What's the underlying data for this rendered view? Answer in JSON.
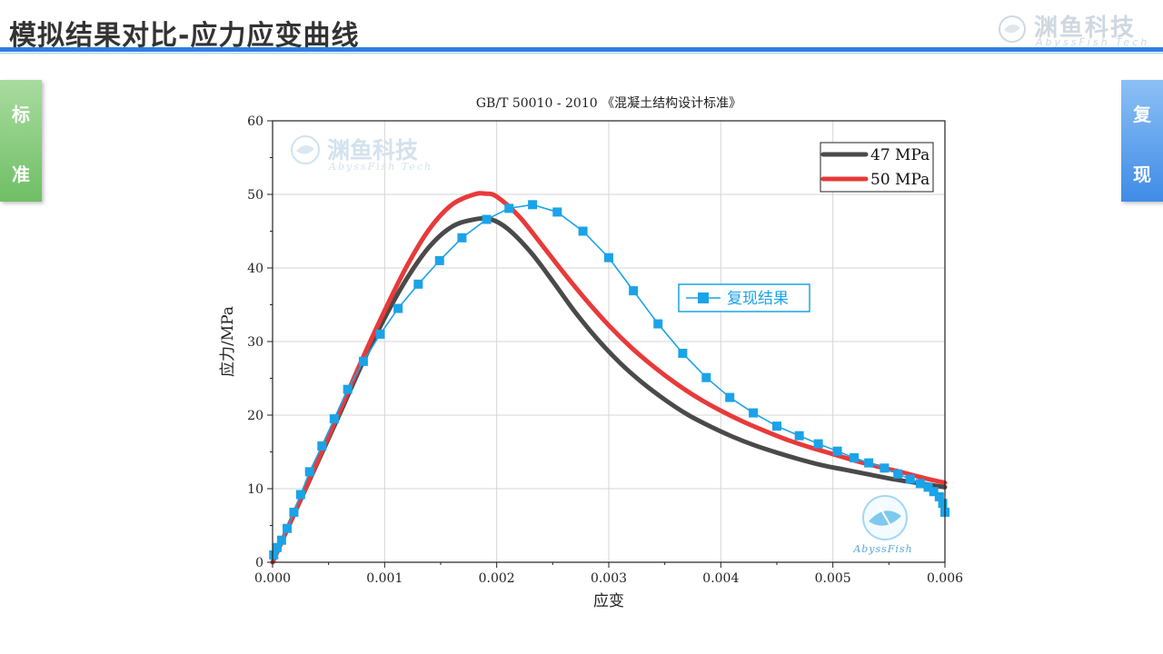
{
  "slide": {
    "title": "模拟结果对比-应力应变曲线",
    "logo_cn": "渊鱼科技",
    "logo_en": "AbyssFish Tech",
    "left_tab": [
      "标",
      "准"
    ],
    "right_tab": [
      "复",
      "现"
    ]
  },
  "watermark": {
    "cn": "渊鱼科技",
    "en": "AbyssFish Tech",
    "badge": "AbyssFish"
  },
  "colors": {
    "accent": "#2e7fe0",
    "series_47": "#4a4a4a",
    "series_50": "#e83a3a",
    "series_repro": "#1aa3e8"
  },
  "chart_data": {
    "type": "line",
    "title": "GB/T 50010 - 2010 《混凝土结构设计标准》",
    "xlabel": "应变",
    "ylabel": "应力/MPa",
    "xlim": [
      0.0,
      0.006
    ],
    "ylim": [
      0,
      60
    ],
    "xticks": [
      "0.000",
      "0.001",
      "0.002",
      "0.003",
      "0.004",
      "0.005",
      "0.006"
    ],
    "yticks": [
      "0",
      "10",
      "20",
      "30",
      "40",
      "50",
      "60"
    ],
    "grid": true,
    "legend_top_right": [
      "47 MPa",
      "50 MPa"
    ],
    "legend_mid": "复现结果",
    "series": [
      {
        "name": "47 MPa",
        "x": [
          0,
          0.0002,
          0.0004,
          0.0006,
          0.0008,
          0.001,
          0.0012,
          0.0014,
          0.0016,
          0.0018,
          0.00195,
          0.0021,
          0.0023,
          0.0025,
          0.0027,
          0.0029,
          0.0031,
          0.0033,
          0.0035,
          0.0037,
          0.0039,
          0.0041,
          0.0043,
          0.0045,
          0.0047,
          0.0049,
          0.0051,
          0.0053,
          0.0055,
          0.0057,
          0.006
        ],
        "y": [
          0,
          6.8,
          13.5,
          20.2,
          27.0,
          33.2,
          38.6,
          42.9,
          45.6,
          46.6,
          46.6,
          45.3,
          42.2,
          38.2,
          34.0,
          30.3,
          27.1,
          24.4,
          22.1,
          20.1,
          18.5,
          17.1,
          15.9,
          14.9,
          14.0,
          13.2,
          12.6,
          12.0,
          11.4,
          10.9,
          10.2
        ]
      },
      {
        "name": "50 MPa",
        "x": [
          0,
          0.0002,
          0.0004,
          0.0006,
          0.0008,
          0.001,
          0.0012,
          0.0014,
          0.0016,
          0.0018,
          0.0019,
          0.002,
          0.0022,
          0.0024,
          0.0026,
          0.0028,
          0.003,
          0.0032,
          0.0034,
          0.0036,
          0.0038,
          0.004,
          0.0042,
          0.0044,
          0.0046,
          0.0048,
          0.005,
          0.0052,
          0.0054,
          0.0056,
          0.0058,
          0.006
        ],
        "y": [
          0,
          6.9,
          13.7,
          20.6,
          27.6,
          34.2,
          40.3,
          45.3,
          48.6,
          50.0,
          50.1,
          49.7,
          47.0,
          43.2,
          39.3,
          35.6,
          32.2,
          29.2,
          26.6,
          24.3,
          22.3,
          20.6,
          19.1,
          17.8,
          16.6,
          15.6,
          14.7,
          13.8,
          13.0,
          12.3,
          11.5,
          10.8
        ]
      },
      {
        "name": "复现结果",
        "x": [
          1e-05,
          4e-05,
          8e-05,
          0.00013,
          0.00019,
          0.00025,
          0.00033,
          0.00044,
          0.00055,
          0.00067,
          0.00081,
          0.00096,
          0.00112,
          0.0013,
          0.00149,
          0.00169,
          0.00191,
          0.00211,
          0.00232,
          0.00254,
          0.00277,
          0.003,
          0.00322,
          0.00344,
          0.00366,
          0.00387,
          0.00408,
          0.00429,
          0.0045,
          0.0047,
          0.00487,
          0.00504,
          0.00519,
          0.00532,
          0.00546,
          0.00558,
          0.00569,
          0.00578,
          0.00585,
          0.0059,
          0.00595,
          0.00598,
          0.006
        ],
        "y": [
          1.0,
          2.0,
          3.0,
          4.6,
          6.8,
          9.2,
          12.3,
          15.8,
          19.5,
          23.5,
          27.3,
          31.0,
          34.5,
          37.8,
          41.0,
          44.1,
          46.6,
          48.1,
          48.6,
          47.6,
          45.0,
          41.4,
          36.9,
          32.4,
          28.4,
          25.1,
          22.4,
          20.3,
          18.5,
          17.2,
          16.1,
          15.1,
          14.2,
          13.5,
          12.8,
          12.0,
          11.3,
          10.7,
          10.2,
          9.6,
          8.9,
          8.0,
          6.8
        ]
      }
    ]
  }
}
